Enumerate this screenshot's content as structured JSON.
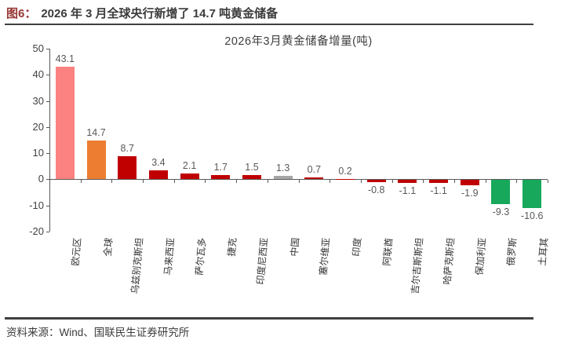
{
  "header": {
    "figure_label": "图6：",
    "title": "2026 年 3 月全球央行新增了 14.7 吨黄金储备"
  },
  "footer": {
    "source": "资料来源：Wind、国联民生证券研究所"
  },
  "colors": {
    "figure_label_red": "#963634",
    "header_text": "#3b3b3b",
    "axis": "#595959",
    "value_label": "#595959"
  },
  "chart_data": {
    "type": "bar",
    "title": "2026年3月黄金储备增量(吨)",
    "categories": [
      "欧元区",
      "全球",
      "乌兹别克斯坦",
      "马来西亚",
      "萨尔瓦多",
      "捷克",
      "印度尼西亚",
      "中国",
      "塞尔维亚",
      "印度",
      "阿联酋",
      "吉尔吉斯斯坦",
      "哈萨克斯坦",
      "保加利亚",
      "俄罗斯",
      "土耳其"
    ],
    "values": [
      43.1,
      14.7,
      8.7,
      3.4,
      2.1,
      1.7,
      1.5,
      1.3,
      0.7,
      0.2,
      -0.8,
      -1.1,
      -1.1,
      -1.9,
      -9.3,
      -10.6
    ],
    "bar_colors": [
      "#FB8280",
      "#ED7D31",
      "#C00000",
      "#C00000",
      "#C00000",
      "#C00000",
      "#C00000",
      "#A6A6A6",
      "#C00000",
      "#C00000",
      "#C00000",
      "#C00000",
      "#C00000",
      "#C00000",
      "#18A85B",
      "#18A85B"
    ],
    "xlabel": "",
    "ylabel": "",
    "ylim": [
      -20,
      50
    ],
    "y_ticks": [
      50,
      40,
      30,
      20,
      10,
      0,
      -10,
      -20
    ],
    "grid": "off",
    "legend": "none",
    "value_labels": "on"
  }
}
